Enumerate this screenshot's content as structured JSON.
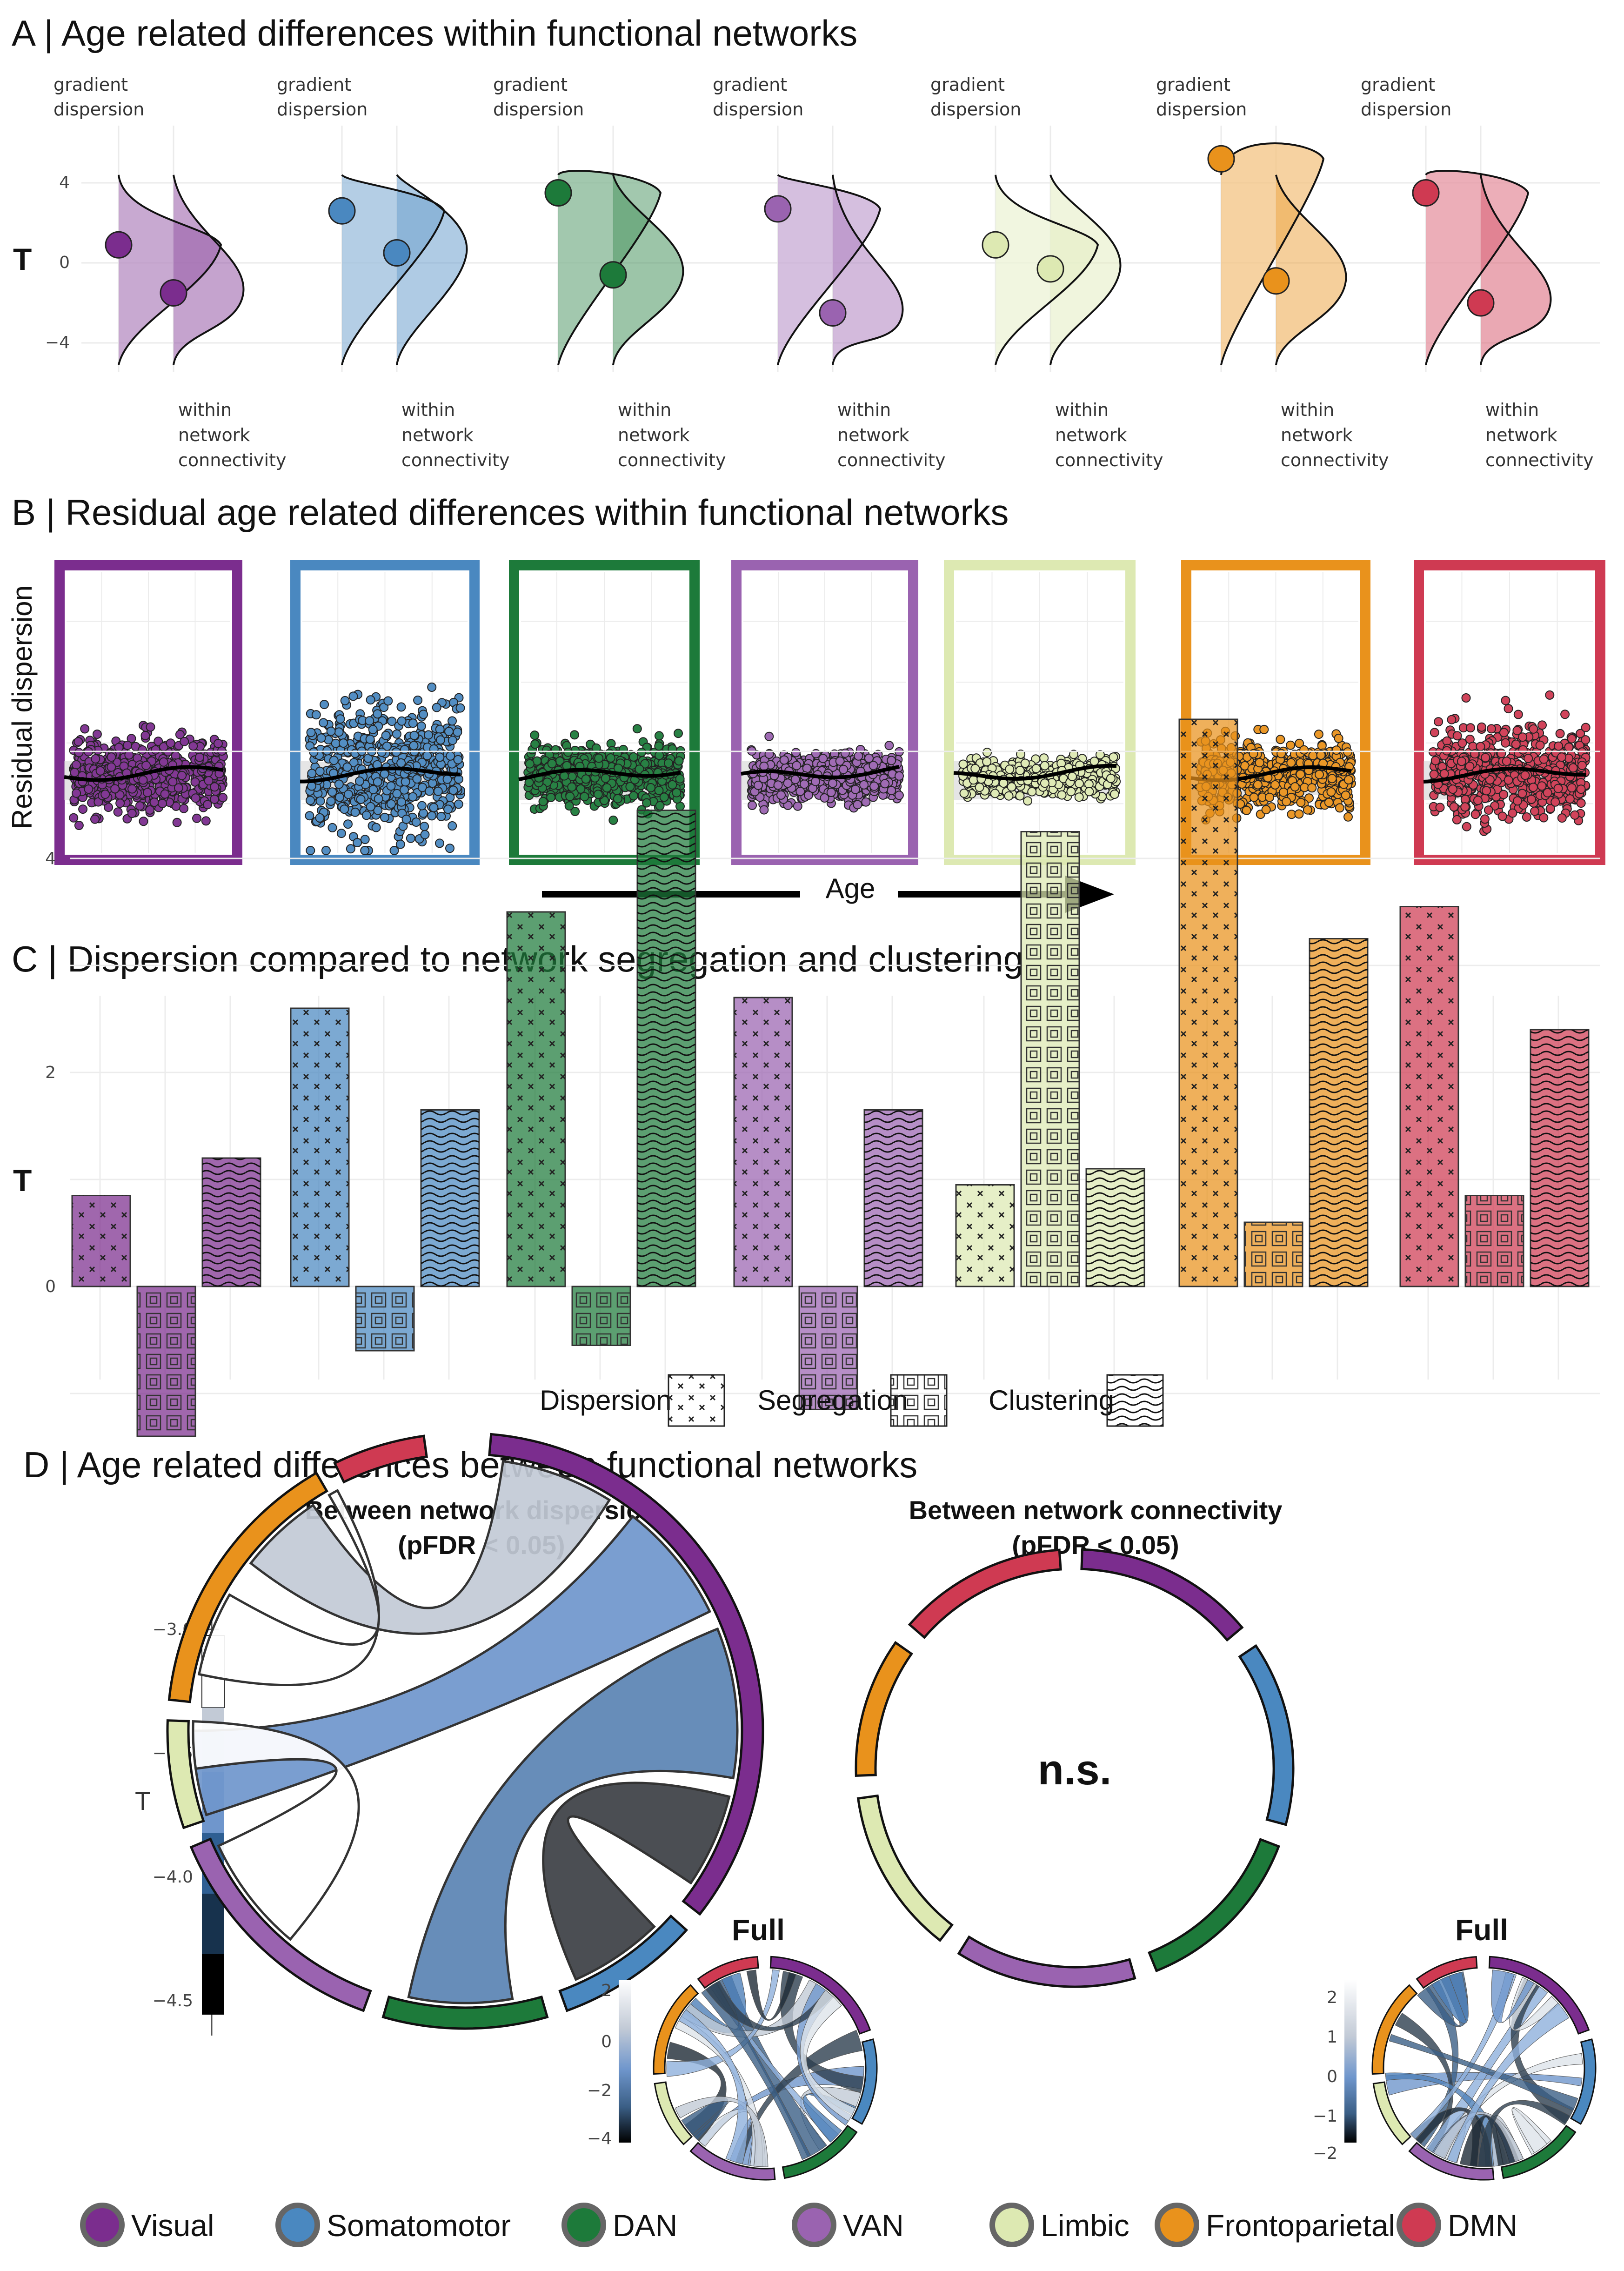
{
  "colors": {
    "Visual": "#7b2d8e",
    "Somatomotor": "#4a88c0",
    "DAN": "#1d7a3a",
    "VAN": "#9a63b0",
    "Limbic": "#dde9b2",
    "Frontoparietal": "#e9921c",
    "DMN": "#cf3a52"
  },
  "panelA": {
    "title": "A | Age related differences within functional networks",
    "ylabel": "T",
    "top_label": "gradient dispersion",
    "bottom_label": "within network connectivity",
    "ticks": [
      "4",
      "0",
      "−4"
    ]
  },
  "panelB": {
    "title": "B | Residual age related differences within functional networks",
    "ylabel": "Residual dispersion",
    "xlabel": "Age"
  },
  "panelC": {
    "title": "C | Dispersion compared to network segregation and clustering",
    "ylabel": "T",
    "ticks": [
      "4",
      "2",
      "0"
    ],
    "legend": [
      "Dispersion",
      "Segregation",
      "Clustering"
    ]
  },
  "panelD": {
    "title": "D | Age related differences between functional networks",
    "left_title_1": "Between network dispersion",
    "left_title_2": "(pFDR < 0.05)",
    "right_title_1": "Between network connectivity",
    "right_title_2": "(pFDR < 0.05)",
    "ns_label": "n.s.",
    "full_label": "Full",
    "cbar_label": "T",
    "cbar_ticks": [
      "−3.0",
      "−3.5",
      "−4.0",
      "−4.5"
    ],
    "mini_left_ticks": [
      "2",
      "0",
      "−2",
      "−4"
    ],
    "mini_right_ticks": [
      "2",
      "1",
      "0",
      "−1",
      "−2"
    ]
  },
  "legend": [
    "Visual",
    "Somatomotor",
    "DAN",
    "VAN",
    "Limbic",
    "Frontoparietal",
    "DMN"
  ],
  "chart_data": [
    {
      "type": "scatter",
      "panel": "A",
      "title": "A | Age related differences within functional networks",
      "ylabel": "T",
      "ylim": [
        -4.5,
        4.8
      ],
      "series": [
        {
          "name": "Visual",
          "gradient_dispersion_T": 0.9,
          "within_network_connectivity_T": -1.5
        },
        {
          "name": "Somatomotor",
          "gradient_dispersion_T": 2.6,
          "within_network_connectivity_T": 0.5
        },
        {
          "name": "DAN",
          "gradient_dispersion_T": 3.5,
          "within_network_connectivity_T": -0.6
        },
        {
          "name": "VAN",
          "gradient_dispersion_T": 2.7,
          "within_network_connectivity_T": -2.5
        },
        {
          "name": "Limbic",
          "gradient_dispersion_T": 0.9,
          "within_network_connectivity_T": -0.3
        },
        {
          "name": "Frontoparietal",
          "gradient_dispersion_T": 5.2,
          "within_network_connectivity_T": -0.9
        },
        {
          "name": "DMN",
          "gradient_dispersion_T": 3.5,
          "within_network_connectivity_T": -2.0
        }
      ]
    },
    {
      "type": "scatter",
      "panel": "B",
      "title": "B | Residual age related differences within functional networks",
      "xlabel": "Age",
      "ylabel": "Residual dispersion",
      "series": [
        {
          "name": "Visual",
          "n_points": 600,
          "spread": 0.85
        },
        {
          "name": "Somatomotor",
          "n_points": 600,
          "spread": 1.5
        },
        {
          "name": "DAN",
          "n_points": 600,
          "spread": 0.75
        },
        {
          "name": "VAN",
          "n_points": 600,
          "spread": 0.6
        },
        {
          "name": "Limbic",
          "n_points": 600,
          "spread": 0.45
        },
        {
          "name": "Frontoparietal",
          "n_points": 600,
          "spread": 0.8
        },
        {
          "name": "DMN",
          "n_points": 600,
          "spread": 1.1
        }
      ]
    },
    {
      "type": "bar",
      "panel": "C",
      "title": "C | Dispersion compared to network segregation and clustering",
      "ylabel": "T",
      "ylim": [
        -1.8,
        5.4
      ],
      "categories": [
        "Visual",
        "Somatomotor",
        "DAN",
        "VAN",
        "Limbic",
        "Frontoparietal",
        "DMN"
      ],
      "series": [
        {
          "name": "Dispersion",
          "values": [
            0.85,
            2.6,
            3.5,
            2.7,
            0.95,
            5.3,
            3.55
          ]
        },
        {
          "name": "Segregation",
          "values": [
            -1.4,
            -0.6,
            -0.55,
            -1.15,
            4.25,
            0.6,
            0.85
          ]
        },
        {
          "name": "Clustering",
          "values": [
            1.2,
            1.65,
            4.45,
            1.65,
            1.1,
            3.25,
            2.4
          ]
        }
      ]
    }
  ]
}
